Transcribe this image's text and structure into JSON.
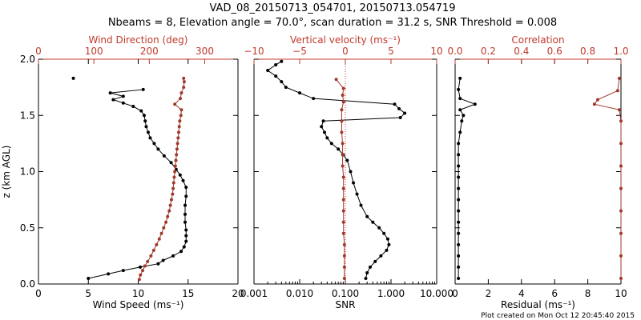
{
  "title_line1": "VAD_08_20150713_054701, 20150713.054719",
  "title_line2": "Nbeams = 8, Elevation angle = 70.0°, scan duration = 31.2 s, SNR Threshold = 0.008",
  "footer": "Plot created on Mon Oct 12 20:45:40 2015",
  "colors": {
    "black": "#000000",
    "red": "#c0392b",
    "brown": "#a0392b"
  },
  "chart_data": [
    {
      "type": "line",
      "panel": "wind",
      "ylabel": "z (km AGL)",
      "ylim": [
        0.0,
        2.0
      ],
      "yticks": [
        "0.0",
        "0.5",
        "1.0",
        "1.5",
        "2.0"
      ],
      "bottom_axis": {
        "label": "Wind Speed (ms⁻¹)",
        "range": [
          0,
          20
        ],
        "ticks": [
          "0",
          "5",
          "10",
          "15",
          "20"
        ]
      },
      "top_axis": {
        "label": "Wind Direction (deg)",
        "range": [
          0,
          360
        ],
        "ticks": [
          "0",
          "100",
          "200",
          "300"
        ]
      },
      "series": [
        {
          "axis": "bottom",
          "color": "#000000",
          "points": [
            [
              5.0,
              0.05
            ],
            [
              7.0,
              0.09
            ],
            [
              8.5,
              0.12
            ],
            [
              10.2,
              0.15
            ],
            [
              12.0,
              0.18
            ],
            [
              12.5,
              0.21
            ],
            [
              13.5,
              0.25
            ],
            [
              14.3,
              0.29
            ],
            [
              14.6,
              0.33
            ],
            [
              14.8,
              0.38
            ],
            [
              14.8,
              0.43
            ],
            [
              14.8,
              0.48
            ],
            [
              14.7,
              0.55
            ],
            [
              14.7,
              0.62
            ],
            [
              14.7,
              0.7
            ],
            [
              14.8,
              0.78
            ],
            [
              14.8,
              0.86
            ],
            [
              14.5,
              0.92
            ],
            [
              14.2,
              0.97
            ],
            [
              13.8,
              1.02
            ],
            [
              13.3,
              1.08
            ],
            [
              12.6,
              1.14
            ],
            [
              12.0,
              1.2
            ],
            [
              11.6,
              1.25
            ],
            [
              11.2,
              1.3
            ],
            [
              11.0,
              1.35
            ],
            [
              10.8,
              1.4
            ],
            [
              10.7,
              1.45
            ],
            [
              10.6,
              1.5
            ],
            [
              10.3,
              1.54
            ],
            [
              9.5,
              1.58
            ],
            [
              8.5,
              1.61
            ],
            [
              7.5,
              1.64
            ],
            [
              8.5,
              1.67
            ],
            [
              7.2,
              1.7
            ],
            [
              10.5,
              1.73
            ]
          ]
        },
        {
          "axis": "bottom",
          "color": "#000000",
          "markers_only": true,
          "points": [
            [
              3.5,
              1.83
            ]
          ]
        },
        {
          "axis": "top",
          "color": "#a0392b",
          "points": [
            [
              182,
              0.04
            ],
            [
              184,
              0.08
            ],
            [
              188,
              0.12
            ],
            [
              192,
              0.16
            ],
            [
              197,
              0.2
            ],
            [
              203,
              0.25
            ],
            [
              208,
              0.3
            ],
            [
              213,
              0.35
            ],
            [
              218,
              0.4
            ],
            [
              222,
              0.45
            ],
            [
              226,
              0.5
            ],
            [
              230,
              0.55
            ],
            [
              233,
              0.6
            ],
            [
              236,
              0.65
            ],
            [
              238,
              0.7
            ],
            [
              240,
              0.75
            ],
            [
              242,
              0.8
            ],
            [
              243,
              0.85
            ],
            [
              244,
              0.9
            ],
            [
              245,
              0.95
            ],
            [
              246,
              1.0
            ],
            [
              247,
              1.05
            ],
            [
              248,
              1.1
            ],
            [
              249,
              1.15
            ],
            [
              250,
              1.2
            ],
            [
              251,
              1.25
            ],
            [
              252,
              1.3
            ],
            [
              253,
              1.35
            ],
            [
              254,
              1.4
            ],
            [
              255,
              1.45
            ],
            [
              257,
              1.5
            ],
            [
              258,
              1.55
            ],
            [
              246,
              1.6
            ],
            [
              256,
              1.65
            ],
            [
              258,
              1.7
            ],
            [
              262,
              1.75
            ],
            [
              263,
              1.8
            ],
            [
              262,
              1.83
            ]
          ]
        }
      ]
    },
    {
      "type": "line",
      "panel": "snr",
      "ylim": [
        0.0,
        2.0
      ],
      "bottom_axis": {
        "label": "SNR",
        "scale": "log",
        "range": [
          0.001,
          10.0
        ],
        "ticks": [
          "0.001",
          "0.010",
          "0.100",
          "1.000",
          "10.000"
        ]
      },
      "top_axis": {
        "label": "Vertical velocity (ms⁻¹)",
        "range": [
          -10,
          10
        ],
        "ticks": [
          "−10",
          "−5",
          "0",
          "5",
          "10"
        ],
        "zero_line": true
      },
      "series": [
        {
          "axis": "bottom",
          "color": "#000000",
          "points": [
            [
              0.28,
              0.05
            ],
            [
              0.3,
              0.1
            ],
            [
              0.35,
              0.15
            ],
            [
              0.45,
              0.2
            ],
            [
              0.6,
              0.25
            ],
            [
              0.8,
              0.3
            ],
            [
              0.9,
              0.35
            ],
            [
              0.85,
              0.4
            ],
            [
              0.7,
              0.45
            ],
            [
              0.55,
              0.5
            ],
            [
              0.4,
              0.55
            ],
            [
              0.3,
              0.6
            ],
            [
              0.22,
              0.7
            ],
            [
              0.18,
              0.8
            ],
            [
              0.15,
              0.9
            ],
            [
              0.13,
              1.0
            ],
            [
              0.11,
              1.1
            ],
            [
              0.09,
              1.15
            ],
            [
              0.07,
              1.2
            ],
            [
              0.05,
              1.25
            ],
            [
              0.04,
              1.3
            ],
            [
              0.035,
              1.35
            ],
            [
              0.03,
              1.4
            ],
            [
              0.033,
              1.45
            ],
            [
              1.6,
              1.48
            ],
            [
              2.0,
              1.52
            ],
            [
              1.5,
              1.56
            ],
            [
              1.2,
              1.6
            ],
            [
              0.02,
              1.65
            ],
            [
              0.01,
              1.7
            ],
            [
              0.005,
              1.75
            ],
            [
              0.004,
              1.8
            ],
            [
              0.003,
              1.85
            ],
            [
              0.002,
              1.9
            ],
            [
              0.003,
              1.95
            ],
            [
              0.004,
              1.98
            ]
          ]
        },
        {
          "axis": "top",
          "color": "#a0392b",
          "points": [
            [
              -0.1,
              0.05
            ],
            [
              -0.1,
              0.15
            ],
            [
              -0.1,
              0.25
            ],
            [
              -0.1,
              0.35
            ],
            [
              -0.2,
              0.45
            ],
            [
              -0.2,
              0.55
            ],
            [
              -0.2,
              0.65
            ],
            [
              -0.2,
              0.75
            ],
            [
              -0.2,
              0.85
            ],
            [
              -0.2,
              0.95
            ],
            [
              -0.3,
              1.05
            ],
            [
              -0.3,
              1.15
            ],
            [
              -0.3,
              1.25
            ],
            [
              -0.4,
              1.35
            ],
            [
              -0.4,
              1.45
            ],
            [
              -0.4,
              1.55
            ],
            [
              -0.2,
              1.62
            ],
            [
              -0.3,
              1.68
            ],
            [
              -0.2,
              1.74
            ],
            [
              -1.0,
              1.82
            ]
          ]
        }
      ]
    },
    {
      "type": "line",
      "panel": "residual",
      "ylim": [
        0.0,
        2.0
      ],
      "bottom_axis": {
        "label": "Residual (ms⁻¹)",
        "range": [
          0,
          10
        ],
        "ticks": [
          "0",
          "2",
          "4",
          "6",
          "8",
          "10"
        ]
      },
      "top_axis": {
        "label": "Correlation",
        "range": [
          0.0,
          1.0
        ],
        "ticks": [
          "0.0",
          "0.2",
          "0.4",
          "0.6",
          "0.8",
          "1.0"
        ]
      },
      "series": [
        {
          "axis": "bottom",
          "color": "#000000",
          "points": [
            [
              0.2,
              0.05
            ],
            [
              0.2,
              0.15
            ],
            [
              0.2,
              0.25
            ],
            [
              0.2,
              0.35
            ],
            [
              0.2,
              0.45
            ],
            [
              0.2,
              0.55
            ],
            [
              0.2,
              0.65
            ],
            [
              0.2,
              0.75
            ],
            [
              0.2,
              0.85
            ],
            [
              0.2,
              0.95
            ],
            [
              0.2,
              1.05
            ],
            [
              0.2,
              1.15
            ],
            [
              0.2,
              1.25
            ],
            [
              0.3,
              1.35
            ],
            [
              0.4,
              1.45
            ],
            [
              0.5,
              1.5
            ],
            [
              0.3,
              1.55
            ],
            [
              1.2,
              1.6
            ],
            [
              0.3,
              1.65
            ],
            [
              0.2,
              1.73
            ],
            [
              0.3,
              1.83
            ]
          ]
        },
        {
          "axis": "top",
          "color": "#a0392b",
          "points": [
            [
              1.0,
              0.05
            ],
            [
              1.0,
              0.25
            ],
            [
              1.0,
              0.45
            ],
            [
              1.0,
              0.65
            ],
            [
              1.0,
              0.85
            ],
            [
              1.0,
              1.05
            ],
            [
              1.0,
              1.25
            ],
            [
              1.0,
              1.45
            ],
            [
              0.99,
              1.55
            ],
            [
              0.84,
              1.6
            ],
            [
              0.86,
              1.64
            ],
            [
              0.98,
              1.72
            ],
            [
              0.99,
              1.83
            ]
          ]
        }
      ]
    }
  ]
}
